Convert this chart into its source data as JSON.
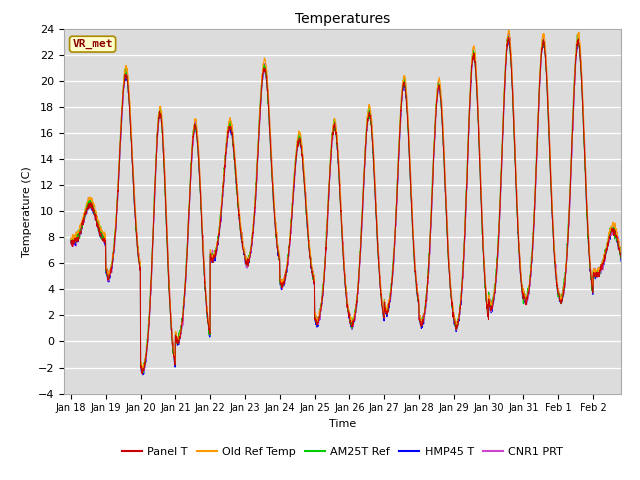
{
  "title": "Temperatures",
  "ylabel": "Temperature (C)",
  "xlabel": "Time",
  "ylim": [
    -4,
    24
  ],
  "yticks": [
    -4,
    -2,
    0,
    2,
    4,
    6,
    8,
    10,
    12,
    14,
    16,
    18,
    20,
    22,
    24
  ],
  "background_color": "#dcdcdc",
  "fig_background": "#ffffff",
  "annotation_text": "VR_met",
  "series_colors": {
    "Panel T": "#cc0000",
    "Old Ref Temp": "#ff9900",
    "AM25T Ref": "#00cc00",
    "HMP45 T": "#0000ff",
    "CNR1 PRT": "#cc44cc"
  },
  "xtick_labels": [
    "Jan 18",
    "Jan 19",
    "Jan 20",
    "Jan 21",
    "Jan 22",
    "Jan 23",
    "Jan 24",
    "Jan 25",
    "Jan 26",
    "Jan 27",
    "Jan 28",
    "Jan 29",
    "Jan 30",
    "Jan 31",
    "Feb 1",
    "Feb 2"
  ],
  "n_days": 16,
  "pts_per_day": 144,
  "diurnal_data": [
    {
      "tmin": 7.5,
      "tmax": 10.5,
      "peak_time": 0.55,
      "sharpness": 4
    },
    {
      "tmin": 4.5,
      "tmax": 20.5,
      "peak_time": 0.58,
      "sharpness": 5
    },
    {
      "tmin": -2.8,
      "tmax": 17.5,
      "peak_time": 0.56,
      "sharpness": 5
    },
    {
      "tmin": -0.5,
      "tmax": 16.5,
      "peak_time": 0.57,
      "sharpness": 5
    },
    {
      "tmin": 6.0,
      "tmax": 16.5,
      "peak_time": 0.57,
      "sharpness": 5
    },
    {
      "tmin": 5.5,
      "tmax": 21.0,
      "peak_time": 0.56,
      "sharpness": 6
    },
    {
      "tmin": 4.0,
      "tmax": 15.5,
      "peak_time": 0.56,
      "sharpness": 5
    },
    {
      "tmin": 1.0,
      "tmax": 16.5,
      "peak_time": 0.57,
      "sharpness": 5
    },
    {
      "tmin": 0.8,
      "tmax": 17.5,
      "peak_time": 0.57,
      "sharpness": 5
    },
    {
      "tmin": 1.8,
      "tmax": 19.8,
      "peak_time": 0.57,
      "sharpness": 6
    },
    {
      "tmin": 0.8,
      "tmax": 19.5,
      "peak_time": 0.57,
      "sharpness": 6
    },
    {
      "tmin": 0.5,
      "tmax": 22.0,
      "peak_time": 0.57,
      "sharpness": 7
    },
    {
      "tmin": 2.0,
      "tmax": 23.2,
      "peak_time": 0.57,
      "sharpness": 7
    },
    {
      "tmin": 2.5,
      "tmax": 23.0,
      "peak_time": 0.57,
      "sharpness": 7
    },
    {
      "tmin": 2.5,
      "tmax": 23.0,
      "peak_time": 0.57,
      "sharpness": 7
    },
    {
      "tmin": 5.0,
      "tmax": 8.5,
      "peak_time": 0.57,
      "sharpness": 4
    }
  ]
}
